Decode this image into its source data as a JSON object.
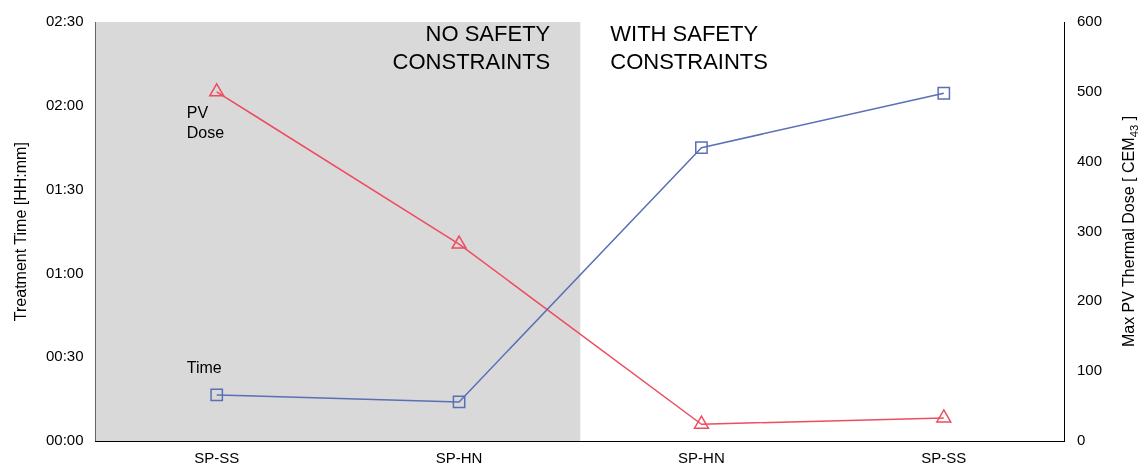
{
  "chart_data": {
    "type": "line",
    "categories": [
      "SP-SS",
      "SP-HN",
      "SP-HN",
      "SP-SS"
    ],
    "ylabel": "Treatment Time [HH:mm]",
    "y2label": "Max PV Thermal Dose [ CEM$_{43}$ ]",
    "ylim": [
      0,
      2.5
    ],
    "yticks": [
      {
        "value": 0,
        "label": "00:00"
      },
      {
        "value": 0.5,
        "label": "00:30"
      },
      {
        "value": 1,
        "label": "01:00"
      },
      {
        "value": 1.5,
        "label": "01:30"
      },
      {
        "value": 2,
        "label": "02:00"
      },
      {
        "value": 2.5,
        "label": "02:30"
      }
    ],
    "y2lim": [
      0,
      600
    ],
    "y2ticks": [
      0,
      100,
      200,
      300,
      400,
      500,
      600
    ],
    "series": [
      {
        "name": "Time",
        "color": "#5b6fb5",
        "marker": "square",
        "values": [
          0.275,
          0.233,
          1.75,
          2.075
        ]
      },
      {
        "name": "PV Dose",
        "color": "#ee4c60",
        "marker": "triangle",
        "axis": "y2",
        "values": [
          500,
          282,
          24,
          33
        ]
      }
    ],
    "bands": [
      {
        "axis": "x",
        "from": "SP-SS",
        "to": "SP-HN",
        "label": "NO SAFETY CONSTRAINTS",
        "color": "#d9d9d9"
      }
    ],
    "annotations": [
      "WITH SAFETY CONSTRAINTS"
    ],
    "grid": false,
    "legend": false,
    "line_style": "solid"
  }
}
